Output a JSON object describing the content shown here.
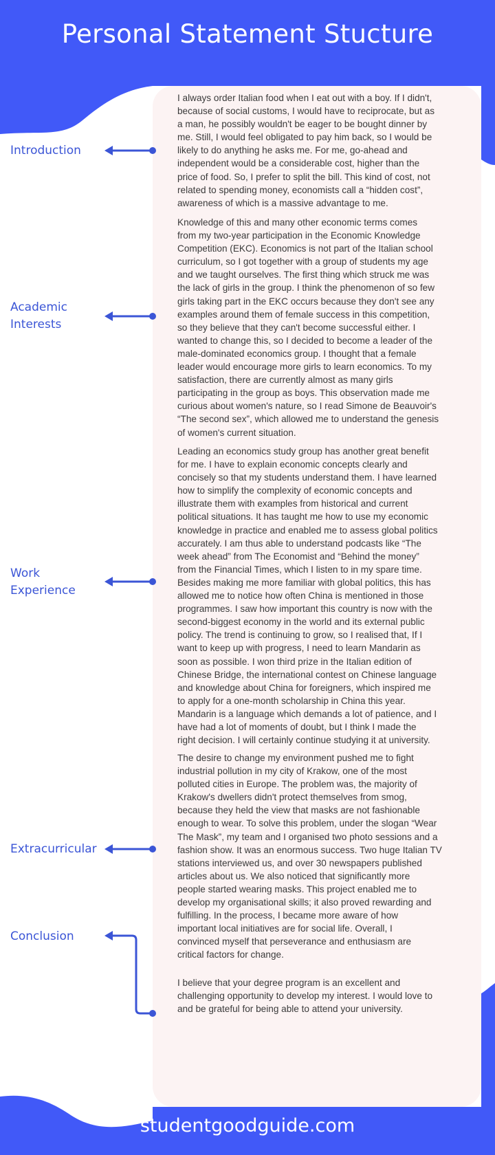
{
  "title": "Personal Statement Stucture",
  "footer": "studentgoodguide.com",
  "colors": {
    "brand_blue": "#4159f8",
    "label_blue": "#3b55d6",
    "card": "#fcf3f3"
  },
  "sections": [
    {
      "label": [
        "Introduction"
      ]
    },
    {
      "label": [
        "Academic",
        "Interests"
      ]
    },
    {
      "label": [
        "Work",
        "Experience"
      ]
    },
    {
      "label": [
        "Extracurricular"
      ]
    },
    {
      "label": [
        "Conclusion"
      ]
    }
  ],
  "paragraphs": [
    [
      "I always order Italian food when I eat out with a boy. If I didn't,",
      "because of social customs, I would have to reciprocate, but as",
      "a man, he possibly wouldn't be eager to be bought dinner by",
      "me. Still, I would feel obligated to pay him back, so I would be",
      "likely to do anything he asks me. For me, go-ahead and",
      "independent would be a considerable cost, higher than the",
      "price of food. So, I prefer to split the bill. This kind of cost, not",
      "related to spending money, economists call a “hidden cost”,",
      "awareness of which is a massive advantage to me."
    ],
    [
      "Knowledge of this and many other economic terms comes",
      "from my two-year participation in the Economic Knowledge",
      "Competition (EKC). Economics is not part of the Italian school",
      "curriculum, so I got together with a group of students my age",
      "and we taught ourselves. The first thing which struck me was",
      "the lack of girls in the group. I think the phenomenon of so few",
      "girls taking part in the EKC occurs because they don't see any",
      "examples around them of female success in this competition,",
      "so they believe that they can't become successful either. I",
      "wanted to change this, so I decided to become a leader of the",
      "male-dominated economics group. I thought that a female",
      "leader would encourage more girls to learn economics. To my",
      "satisfaction, there are currently almost as many girls",
      "participating in the group as boys. This observation made me",
      "curious about women's nature, so I read Simone de Beauvoir's",
      "“The second sex”, which allowed me to understand the genesis",
      "of women's current situation."
    ],
    [
      "Leading an economics study group has another great benefit",
      "for me. I have to explain economic concepts clearly and",
      "concisely so that my students understand them. I have learned",
      "how to simplify the complexity of economic concepts and",
      "illustrate them with examples from historical and current",
      "political situations. It has taught me how to use my economic",
      "knowledge in practice and enabled me to assess global politics",
      "accurately. I am thus able to understand podcasts like “The",
      "week ahead” from The Economist and “Behind the money”",
      "from the Financial Times, which I listen to in my spare time.",
      "Besides making me more familiar with global politics, this has",
      "allowed me to notice how often China is mentioned in those",
      "programmes. I saw how important this country is now with the",
      "second-biggest economy in the world and its external public",
      "policy. The trend is continuing to grow, so I realised that, If I",
      "want to keep up with progress, I need to learn Mandarin as",
      "soon as possible. I won third prize in the Italian edition of",
      "Chinese Bridge, the international contest on Chinese language",
      "and knowledge about China for foreigners, which inspired me",
      "to apply for a one-month scholarship in China this year.",
      "Mandarin is a language which demands a lot of patience, and I",
      "have had a lot of moments of doubt, but I think I made the",
      "right decision. I will certainly continue studying it at university."
    ],
    [
      "The desire to change my environment pushed me to fight",
      "industrial pollution in my city of Krakow, one of the most",
      "polluted cities in Europe. The problem was, the majority of",
      "Krakow's dwellers didn't protect themselves from smog,",
      "because they held the view that masks are not fashionable",
      "enough to wear. To solve this problem, under the slogan “Wear",
      "The Mask”, my team and I organised two photo sessions and a",
      "fashion show. It was an enormous success. Two huge Italian TV",
      "stations interviewed us, and over 30 newspapers published",
      "articles about us. We also noticed that significantly more",
      "people started wearing masks. This project enabled me to",
      "develop my organisational skills; it also proved rewarding and",
      "fulfilling. In the process, I became more aware of how",
      "important local initiatives are for social life. Overall, I",
      "convinced myself that perseverance and enthusiasm are",
      "critical factors for change."
    ],
    [
      "I believe that your degree program is an excellent and",
      "challenging opportunity to develop my interest. I would love to",
      "and be grateful for being able to attend your university."
    ]
  ]
}
